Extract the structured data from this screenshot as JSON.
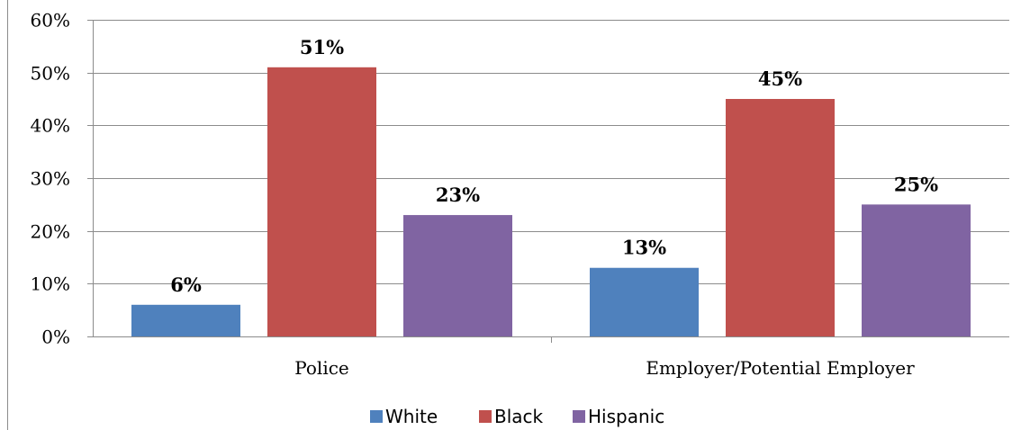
{
  "chart_data": {
    "type": "bar",
    "categories": [
      "Police",
      "Employer/Potential Employer"
    ],
    "series": [
      {
        "name": "White",
        "values": [
          6,
          13
        ],
        "color": "#4f81bd"
      },
      {
        "name": "Black",
        "values": [
          51,
          45
        ],
        "color": "#c0504d"
      },
      {
        "name": "Hispanic",
        "values": [
          23,
          25
        ],
        "color": "#8064a2"
      }
    ],
    "data_labels": [
      [
        "6%",
        "13%"
      ],
      [
        "51%",
        "45%"
      ],
      [
        "23%",
        "25%"
      ]
    ],
    "yticks": [
      "0%",
      "10%",
      "20%",
      "30%",
      "40%",
      "50%",
      "60%"
    ],
    "ylim": [
      0,
      60
    ],
    "title": "",
    "xlabel": "",
    "ylabel": "",
    "grid": true,
    "legend_position": "bottom"
  }
}
